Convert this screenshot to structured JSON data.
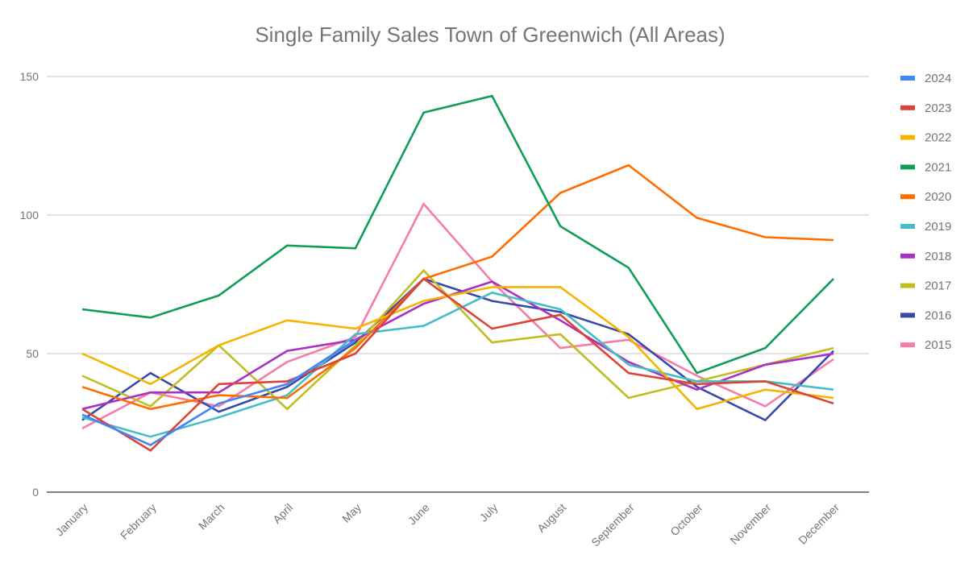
{
  "chart_data": {
    "type": "line",
    "title": "Single Family Sales Town of Greenwich (All Areas)",
    "xlabel": "",
    "ylabel": "",
    "ylim": [
      0,
      150
    ],
    "yticks": [
      0,
      50,
      100,
      150
    ],
    "grid": true,
    "legend_position": "right",
    "categories": [
      "January",
      "February",
      "March",
      "April",
      "May",
      "June",
      "July",
      "August",
      "September",
      "October",
      "November",
      "December"
    ],
    "series": [
      {
        "name": "2024",
        "color": "#4285f4",
        "values": [
          28,
          17,
          32,
          39,
          55,
          null,
          null,
          null,
          null,
          null,
          null,
          null
        ]
      },
      {
        "name": "2023",
        "color": "#db4437",
        "values": [
          30,
          15,
          39,
          40,
          50,
          77,
          59,
          64,
          43,
          39,
          40,
          32
        ]
      },
      {
        "name": "2022",
        "color": "#f4b400",
        "values": [
          50,
          39,
          53,
          62,
          59,
          69,
          74,
          74,
          56,
          30,
          37,
          34
        ]
      },
      {
        "name": "2021",
        "color": "#0f9d58",
        "values": [
          66,
          63,
          71,
          89,
          88,
          137,
          143,
          96,
          81,
          43,
          52,
          77
        ]
      },
      {
        "name": "2020",
        "color": "#ff6d00",
        "values": [
          38,
          30,
          35,
          34,
          52,
          77,
          85,
          108,
          118,
          99,
          92,
          91
        ]
      },
      {
        "name": "2019",
        "color": "#46bdc6",
        "values": [
          27,
          20,
          27,
          35,
          57,
          60,
          72,
          66,
          46,
          40,
          40,
          37
        ]
      },
      {
        "name": "2018",
        "color": "#ab30c4",
        "values": [
          30,
          36,
          36,
          51,
          55,
          68,
          76,
          62,
          47,
          37,
          46,
          50
        ]
      },
      {
        "name": "2017",
        "color": "#c0bd21",
        "values": [
          42,
          31,
          53,
          30,
          53,
          80,
          54,
          57,
          34,
          40,
          46,
          52
        ]
      },
      {
        "name": "2016",
        "color": "#3949ab",
        "values": [
          26,
          43,
          29,
          38,
          54,
          77,
          69,
          65,
          57,
          38,
          26,
          51
        ]
      },
      {
        "name": "2015",
        "color": "#f57ba9",
        "values": [
          23,
          36,
          31,
          47,
          56,
          104,
          76,
          52,
          55,
          42,
          31,
          48
        ]
      }
    ]
  }
}
